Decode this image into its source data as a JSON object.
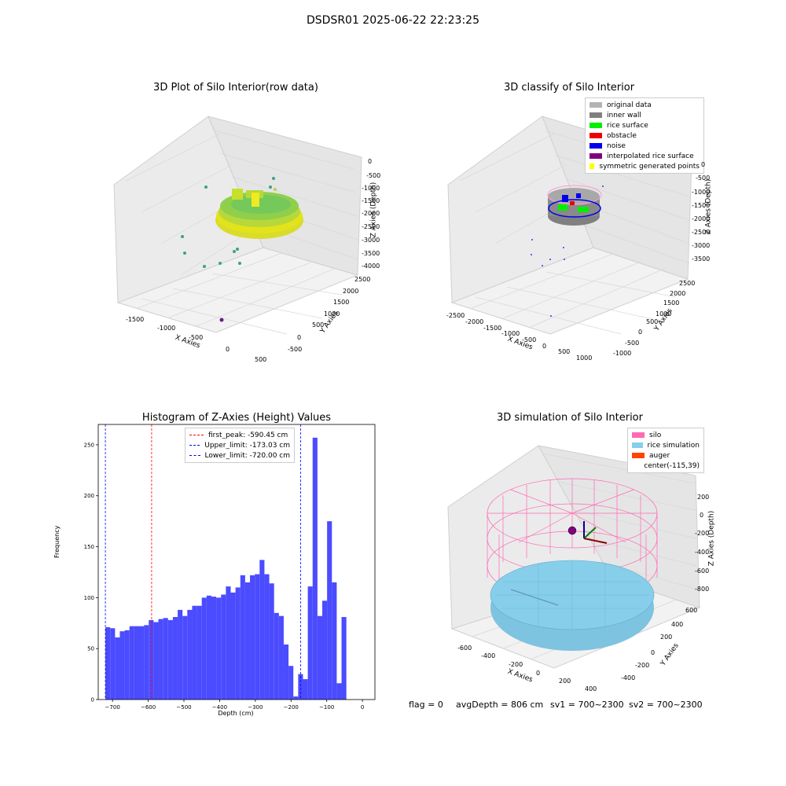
{
  "figure": {
    "suptitle": "DSDSR01 2025-06-22 22:23:25",
    "status": {
      "flag": "flag = 0",
      "avg_depth": "avgDepth = 806 cm",
      "sv1": "sv1 = 700~2300",
      "sv2": "sv2 = 700~2300"
    }
  },
  "chart_data": [
    {
      "type": "scatter",
      "title": "3D Plot of Silo Interior(row data)",
      "xlabel": "X Axies",
      "ylabel": "Y Axies",
      "zlabel": "Z Axies (Depth)",
      "x_ticks": [
        "-1500",
        "-1000",
        "-500",
        "0",
        "500"
      ],
      "y_ticks": [
        "-500",
        "0",
        "500",
        "1000",
        "1500",
        "2000",
        "2500"
      ],
      "z_ticks": [
        "0",
        "-500",
        "-1000",
        "-1500",
        "-2000",
        "-2500",
        "-3000",
        "-3500",
        "-4000"
      ],
      "colors": {
        "low": "#e8e51b",
        "high": "#6cc85a",
        "outlier": "#3a9e8d",
        "deep": "#6a1b8a"
      }
    },
    {
      "type": "scatter",
      "title": "3D classify of Silo Interior",
      "xlabel": "X Axies",
      "ylabel": "Y Axies",
      "zlabel": "Z Axies (Depth)",
      "x_ticks": [
        "-2500",
        "-2000",
        "-1500",
        "-1000",
        "-500",
        "0",
        "500",
        "1000"
      ],
      "y_ticks": [
        "-1000",
        "-500",
        "0",
        "500",
        "1000",
        "1500",
        "2000",
        "2500"
      ],
      "z_ticks": [
        "0",
        "-500",
        "-1000",
        "-1500",
        "-2000",
        "-2500",
        "-3000",
        "-3500"
      ],
      "legend": [
        {
          "label": "original data",
          "color": "#b3b3b3"
        },
        {
          "label": "inner wall",
          "color": "#808080"
        },
        {
          "label": "rice surface",
          "color": "#00ee00"
        },
        {
          "label": "obstacle",
          "color": "#ee0000"
        },
        {
          "label": "noise",
          "color": "#0000ee"
        },
        {
          "label": "interpolated rice surface",
          "color": "#800080"
        },
        {
          "label": "symmetric generated points",
          "color": "#ffff00"
        }
      ]
    },
    {
      "type": "bar",
      "title": "Histogram of Z-Axies (Height) Values",
      "xlabel": "Depth (cm)",
      "ylabel": "Frequency",
      "xlim": [
        -740,
        35
      ],
      "ylim": [
        0,
        270
      ],
      "x_ticks": [
        -700,
        -600,
        -500,
        -400,
        -300,
        -200,
        -100,
        0
      ],
      "y_ticks": [
        0,
        50,
        100,
        150,
        200,
        250
      ],
      "bar_color": "#4b4bff",
      "bin_start": -720,
      "bin_width": 13.5,
      "values": [
        71,
        70,
        61,
        67,
        68,
        72,
        72,
        72,
        73,
        78,
        76,
        79,
        80,
        78,
        81,
        88,
        82,
        88,
        92,
        92,
        100,
        102,
        101,
        100,
        103,
        111,
        105,
        110,
        122,
        115,
        122,
        123,
        137,
        123,
        114,
        85,
        82,
        54,
        33,
        3,
        25,
        20,
        111,
        257,
        82,
        97,
        175,
        115,
        16,
        81
      ],
      "lines": [
        {
          "label": "first_peak: -590.45 cm",
          "x": -590.45,
          "color": "#ff0000"
        },
        {
          "label": "Upper_limit: -173.03 cm",
          "x": -173.03,
          "color": "#0000ff"
        },
        {
          "label": "Lower_limit: -720.00 cm",
          "x": -720.0,
          "color": "#0000ff"
        }
      ]
    },
    {
      "type": "scatter",
      "title": "3D simulation of Silo Interior",
      "xlabel": "X Axies",
      "ylabel": "Y Axies",
      "zlabel": "Z Axies (Depth)",
      "x_ticks": [
        "-600",
        "-400",
        "-200",
        "0",
        "200",
        "400"
      ],
      "y_ticks": [
        "-400",
        "-200",
        "0",
        "200",
        "400",
        "600"
      ],
      "z_ticks": [
        "200",
        "0",
        "-200",
        "-400",
        "-600",
        "-800"
      ],
      "legend": [
        {
          "label": "silo",
          "color": "#ff69b4"
        },
        {
          "label": "rice simulation",
          "color": "#87ceeb"
        },
        {
          "label": "auger",
          "color": "#ff4500"
        },
        {
          "label": "center(-115,39)",
          "color": ""
        }
      ]
    }
  ]
}
